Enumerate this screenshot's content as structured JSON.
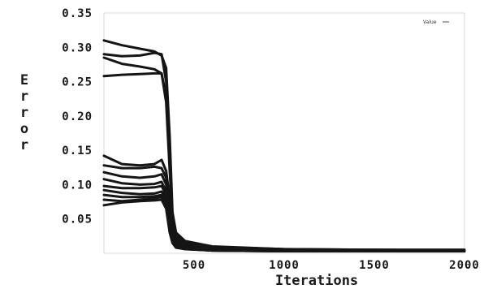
{
  "chart_data": {
    "type": "line",
    "xlabel": "Iterations",
    "ylabel": "Error",
    "xlim": [
      0,
      2000
    ],
    "ylim": [
      0,
      0.35
    ],
    "x_ticks": [
      "500",
      "1000",
      "1500",
      "2000"
    ],
    "x_tick_values": [
      500,
      1000,
      1500,
      2000
    ],
    "y_ticks": [
      "0.05",
      "0.10",
      "0.15",
      "0.20",
      "0.25",
      "0.30",
      "0.35"
    ],
    "y_tick_values": [
      0.05,
      0.1,
      0.15,
      0.2,
      0.25,
      0.3,
      0.35
    ],
    "grid": false,
    "legend": {
      "position": "top-right",
      "entries": [
        "Value"
      ]
    },
    "series": [
      {
        "x": [
          0,
          100,
          200,
          280,
          320,
          345,
          365,
          380,
          400,
          450,
          600,
          1000,
          1500,
          2000
        ],
        "y": [
          0.31,
          0.303,
          0.298,
          0.294,
          0.288,
          0.27,
          0.17,
          0.06,
          0.03,
          0.018,
          0.01,
          0.006,
          0.005,
          0.005
        ]
      },
      {
        "x": [
          0,
          100,
          200,
          280,
          320,
          345,
          365,
          380,
          400,
          450,
          600,
          1000,
          1500,
          2000
        ],
        "y": [
          0.29,
          0.287,
          0.288,
          0.292,
          0.29,
          0.25,
          0.15,
          0.05,
          0.025,
          0.016,
          0.009,
          0.006,
          0.005,
          0.005
        ]
      },
      {
        "x": [
          0,
          100,
          200,
          280,
          320,
          345,
          365,
          380,
          400,
          450,
          600,
          1000,
          1500,
          2000
        ],
        "y": [
          0.285,
          0.276,
          0.272,
          0.268,
          0.262,
          0.23,
          0.13,
          0.05,
          0.022,
          0.014,
          0.008,
          0.005,
          0.005,
          0.004
        ]
      },
      {
        "x": [
          0,
          100,
          200,
          280,
          320,
          345,
          365,
          380,
          400,
          450,
          600,
          1000,
          1500,
          2000
        ],
        "y": [
          0.258,
          0.26,
          0.261,
          0.262,
          0.262,
          0.22,
          0.12,
          0.05,
          0.02,
          0.013,
          0.008,
          0.005,
          0.005,
          0.004
        ]
      },
      {
        "x": [
          0,
          100,
          200,
          280,
          320,
          345,
          365,
          380,
          400,
          450,
          600,
          1000,
          1500,
          2000
        ],
        "y": [
          0.142,
          0.13,
          0.128,
          0.13,
          0.136,
          0.12,
          0.08,
          0.04,
          0.018,
          0.012,
          0.007,
          0.005,
          0.004,
          0.004
        ]
      },
      {
        "x": [
          0,
          100,
          200,
          280,
          320,
          345,
          365,
          380,
          400,
          450,
          600,
          1000,
          1500,
          2000
        ],
        "y": [
          0.128,
          0.124,
          0.124,
          0.126,
          0.124,
          0.11,
          0.07,
          0.03,
          0.015,
          0.01,
          0.006,
          0.004,
          0.004,
          0.004
        ]
      },
      {
        "x": [
          0,
          100,
          200,
          280,
          320,
          345,
          365,
          380,
          400,
          450,
          600,
          1000,
          1500,
          2000
        ],
        "y": [
          0.118,
          0.112,
          0.11,
          0.112,
          0.115,
          0.1,
          0.06,
          0.03,
          0.014,
          0.01,
          0.006,
          0.004,
          0.004,
          0.003
        ]
      },
      {
        "x": [
          0,
          100,
          200,
          280,
          320,
          345,
          365,
          380,
          400,
          450,
          600,
          1000,
          1500,
          2000
        ],
        "y": [
          0.108,
          0.102,
          0.1,
          0.101,
          0.104,
          0.09,
          0.05,
          0.025,
          0.012,
          0.009,
          0.005,
          0.004,
          0.003,
          0.003
        ]
      },
      {
        "x": [
          0,
          100,
          200,
          280,
          320,
          345,
          365,
          380,
          400,
          450,
          600,
          1000,
          1500,
          2000
        ],
        "y": [
          0.098,
          0.095,
          0.095,
          0.096,
          0.098,
          0.085,
          0.05,
          0.022,
          0.011,
          0.008,
          0.005,
          0.004,
          0.003,
          0.003
        ]
      },
      {
        "x": [
          0,
          100,
          200,
          280,
          320,
          345,
          365,
          380,
          400,
          450,
          600,
          1000,
          1500,
          2000
        ],
        "y": [
          0.092,
          0.088,
          0.086,
          0.087,
          0.09,
          0.08,
          0.045,
          0.02,
          0.01,
          0.007,
          0.005,
          0.003,
          0.003,
          0.003
        ]
      },
      {
        "x": [
          0,
          100,
          200,
          280,
          320,
          345,
          365,
          380,
          400,
          450,
          600,
          1000,
          1500,
          2000
        ],
        "y": [
          0.085,
          0.082,
          0.082,
          0.083,
          0.085,
          0.075,
          0.04,
          0.018,
          0.01,
          0.007,
          0.004,
          0.003,
          0.003,
          0.003
        ]
      },
      {
        "x": [
          0,
          100,
          200,
          280,
          320,
          345,
          365,
          380,
          400,
          450,
          600,
          1000,
          1500,
          2000
        ],
        "y": [
          0.078,
          0.076,
          0.078,
          0.08,
          0.082,
          0.07,
          0.035,
          0.016,
          0.009,
          0.006,
          0.004,
          0.003,
          0.003,
          0.003
        ]
      },
      {
        "x": [
          0,
          100,
          200,
          280,
          320,
          345,
          365,
          380,
          400,
          450,
          600,
          1000,
          1500,
          2000
        ],
        "y": [
          0.07,
          0.074,
          0.076,
          0.077,
          0.078,
          0.065,
          0.03,
          0.015,
          0.008,
          0.006,
          0.004,
          0.003,
          0.003,
          0.003
        ]
      }
    ]
  }
}
